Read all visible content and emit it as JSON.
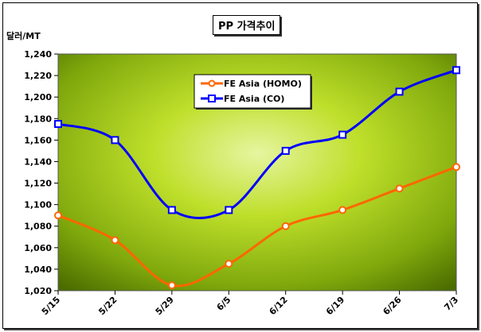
{
  "chart_data": {
    "type": "line",
    "title": "PP 가격추이",
    "ylabel": "달러/MT",
    "xlabel": "",
    "categories": [
      "5/15",
      "5/22",
      "5/29",
      "6/5",
      "6/12",
      "6/19",
      "6/26",
      "7/3"
    ],
    "ylim": [
      1020,
      1240
    ],
    "ytick_step": 20,
    "ytick_labels": [
      "1,020",
      "1,040",
      "1,060",
      "1,080",
      "1,100",
      "1,120",
      "1,140",
      "1,160",
      "1,180",
      "1,200",
      "1,220",
      "1,240"
    ],
    "grid": false,
    "legend_position": "top-center",
    "series": [
      {
        "name": "FE Asia (HOMO)",
        "color": "#ff6600",
        "marker": "circle",
        "values": [
          1090,
          1067,
          1025,
          1045,
          1080,
          1095,
          1115,
          1135
        ]
      },
      {
        "name": "FE Asia (CO)",
        "color": "#0000ff",
        "marker": "square",
        "values": [
          1175,
          1160,
          1095,
          1095,
          1150,
          1165,
          1205,
          1225
        ]
      }
    ]
  }
}
